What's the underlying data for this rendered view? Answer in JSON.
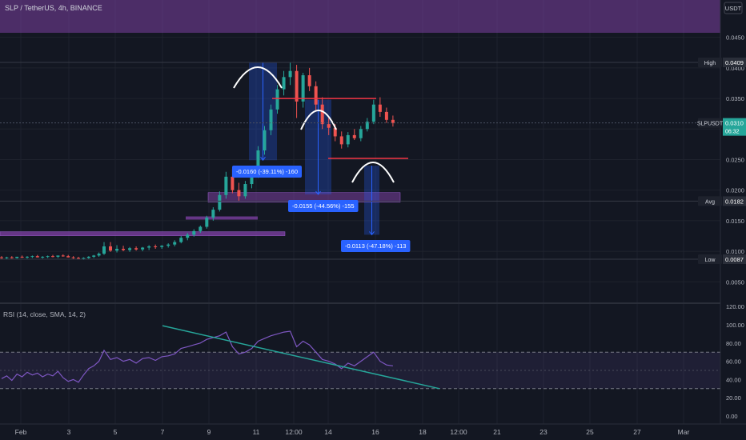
{
  "header": {
    "symbol_line": "SLP / TetherUS, 4h, BINANCE",
    "currency_button": "USDT"
  },
  "colors": {
    "background": "#131722",
    "up": "#26a69a",
    "down": "#ef5350",
    "grid": "#1e222d",
    "text": "#b2b5be",
    "purple_zone": "#7b3fa0",
    "measure_blue": "#2962ff",
    "trendline": "#26a69a",
    "rsi_line": "#7e57c2",
    "resistance": "#f23645"
  },
  "chart_data": [
    {
      "type": "candlestick",
      "title": "SLP / TetherUS, 4h, BINANCE",
      "x_axis_labels": [
        "Feb",
        "3",
        "5",
        "7",
        "9",
        "11",
        "12:00",
        "14",
        "16",
        "18",
        "12:00",
        "21",
        "23",
        "25",
        "27",
        "Mar"
      ],
      "x_range_days": [
        1,
        29
      ],
      "y_ticks": [
        "0.0450",
        "0.0400",
        "0.0350",
        "0.0300",
        "0.0250",
        "0.0200",
        "0.0150",
        "0.0100",
        "0.0050"
      ],
      "ylim": [
        0.0,
        0.048
      ],
      "price_labels": [
        {
          "name": "High",
          "value": "0.0409",
          "v": 0.0409
        },
        {
          "name": "SLPUSDT",
          "value": "0.0310",
          "v": 0.031,
          "sub": "06:32"
        },
        {
          "name": "Avg",
          "value": "0.0182",
          "v": 0.0182
        },
        {
          "name": "Low",
          "value": "0.0087",
          "v": 0.0087
        }
      ],
      "series": [
        {
          "name": "SLP / TetherUS",
          "candles": [
            [
              0.009,
              0.0092,
              0.0087,
              0.0089
            ],
            [
              0.0089,
              0.0091,
              0.0087,
              0.009
            ],
            [
              0.009,
              0.0092,
              0.0088,
              0.0089
            ],
            [
              0.0089,
              0.0091,
              0.0088,
              0.0091
            ],
            [
              0.0091,
              0.0093,
              0.0089,
              0.009
            ],
            [
              0.009,
              0.0092,
              0.0088,
              0.0091
            ],
            [
              0.0091,
              0.0093,
              0.0089,
              0.0092
            ],
            [
              0.0092,
              0.0094,
              0.009,
              0.009
            ],
            [
              0.009,
              0.0092,
              0.0088,
              0.0091
            ],
            [
              0.0091,
              0.0093,
              0.0089,
              0.0092
            ],
            [
              0.0092,
              0.0094,
              0.009,
              0.0091
            ],
            [
              0.0091,
              0.0093,
              0.0089,
              0.0093
            ],
            [
              0.0093,
              0.0095,
              0.0091,
              0.0092
            ],
            [
              0.0092,
              0.0094,
              0.009,
              0.009
            ],
            [
              0.009,
              0.0092,
              0.0087,
              0.0089
            ],
            [
              0.0089,
              0.0091,
              0.0087,
              0.0088
            ],
            [
              0.0088,
              0.009,
              0.0086,
              0.0089
            ],
            [
              0.0089,
              0.0092,
              0.0087,
              0.0091
            ],
            [
              0.0091,
              0.0094,
              0.0089,
              0.0093
            ],
            [
              0.0093,
              0.0098,
              0.0091,
              0.0096
            ],
            [
              0.0096,
              0.0115,
              0.0094,
              0.0108
            ],
            [
              0.0108,
              0.0115,
              0.0099,
              0.0101
            ],
            [
              0.0101,
              0.011,
              0.0098,
              0.0104
            ],
            [
              0.0104,
              0.0109,
              0.01,
              0.0102
            ],
            [
              0.0102,
              0.0107,
              0.0099,
              0.0105
            ],
            [
              0.0105,
              0.0108,
              0.0101,
              0.0103
            ],
            [
              0.0103,
              0.0107,
              0.01,
              0.0106
            ],
            [
              0.0106,
              0.011,
              0.0102,
              0.0108
            ],
            [
              0.0108,
              0.0111,
              0.0104,
              0.0107
            ],
            [
              0.0107,
              0.011,
              0.0104,
              0.0109
            ],
            [
              0.0109,
              0.0113,
              0.0106,
              0.0111
            ],
            [
              0.0111,
              0.0118,
              0.0108,
              0.0115
            ],
            [
              0.0115,
              0.0125,
              0.0113,
              0.0122
            ],
            [
              0.0122,
              0.013,
              0.0118,
              0.0127
            ],
            [
              0.0127,
              0.0136,
              0.0124,
              0.0133
            ],
            [
              0.0133,
              0.0142,
              0.013,
              0.014
            ],
            [
              0.014,
              0.0158,
              0.0137,
              0.0155
            ],
            [
              0.0155,
              0.0172,
              0.015,
              0.0168
            ],
            [
              0.0168,
              0.0198,
              0.0165,
              0.0192
            ],
            [
              0.0192,
              0.023,
              0.0186,
              0.0222
            ],
            [
              0.0222,
              0.0235,
              0.0195,
              0.02
            ],
            [
              0.02,
              0.0212,
              0.0182,
              0.019
            ],
            [
              0.019,
              0.0215,
              0.0186,
              0.021
            ],
            [
              0.021,
              0.023,
              0.0203,
              0.0225
            ],
            [
              0.0225,
              0.0272,
              0.022,
              0.0265
            ],
            [
              0.0265,
              0.0305,
              0.0258,
              0.0298
            ],
            [
              0.0298,
              0.034,
              0.029,
              0.0332
            ],
            [
              0.0332,
              0.0372,
              0.0325,
              0.0365
            ],
            [
              0.0365,
              0.0395,
              0.0355,
              0.0385
            ],
            [
              0.0385,
              0.0409,
              0.0372,
              0.0395
            ],
            [
              0.0395,
              0.0405,
              0.0318,
              0.0345
            ],
            [
              0.0345,
              0.0392,
              0.0335,
              0.0388
            ],
            [
              0.0388,
              0.04,
              0.0362,
              0.037
            ],
            [
              0.037,
              0.0378,
              0.033,
              0.034
            ],
            [
              0.034,
              0.0352,
              0.03,
              0.0308
            ],
            [
              0.0308,
              0.0318,
              0.029,
              0.0302
            ],
            [
              0.0302,
              0.0308,
              0.028,
              0.0288
            ],
            [
              0.0288,
              0.0296,
              0.0268,
              0.0275
            ],
            [
              0.0275,
              0.0295,
              0.027,
              0.029
            ],
            [
              0.029,
              0.03,
              0.0282,
              0.0285
            ],
            [
              0.0285,
              0.0305,
              0.028,
              0.03
            ],
            [
              0.03,
              0.0318,
              0.0296,
              0.0312
            ],
            [
              0.0312,
              0.0348,
              0.0308,
              0.034
            ],
            [
              0.034,
              0.0352,
              0.032,
              0.0328
            ],
            [
              0.0328,
              0.0335,
              0.031,
              0.0315
            ],
            [
              0.0315,
              0.0322,
              0.0304,
              0.031
            ]
          ]
        }
      ]
    },
    {
      "type": "line",
      "title": "RSI (14, close, SMA, 14, 2)",
      "y_ticks": [
        "120.00",
        "100.00",
        "80.00",
        "60.00",
        "40.00",
        "20.00",
        "0.00"
      ],
      "ylim": [
        -5,
        122
      ],
      "bands": [
        30,
        70
      ],
      "middle": 50,
      "series": [
        {
          "name": "RSI",
          "values": [
            41,
            44,
            39,
            46,
            43,
            48,
            45,
            47,
            43,
            46,
            44,
            49,
            42,
            38,
            40,
            37,
            45,
            52,
            55,
            60,
            72,
            62,
            64,
            60,
            62,
            58,
            63,
            64,
            61,
            65,
            66,
            68,
            74,
            76,
            78,
            80,
            84,
            86,
            88,
            92,
            76,
            68,
            70,
            74,
            82,
            85,
            88,
            90,
            92,
            93,
            76,
            82,
            78,
            70,
            62,
            60,
            57,
            52,
            58,
            55,
            60,
            65,
            70,
            60,
            56,
            55
          ]
        }
      ]
    }
  ],
  "annotations": {
    "measure_1": "-0.0160 (-39.11%) -160",
    "measure_2": "-0.0155 (-44.56%) -155",
    "measure_3": "-0.0113 (-47.18%) -113"
  }
}
